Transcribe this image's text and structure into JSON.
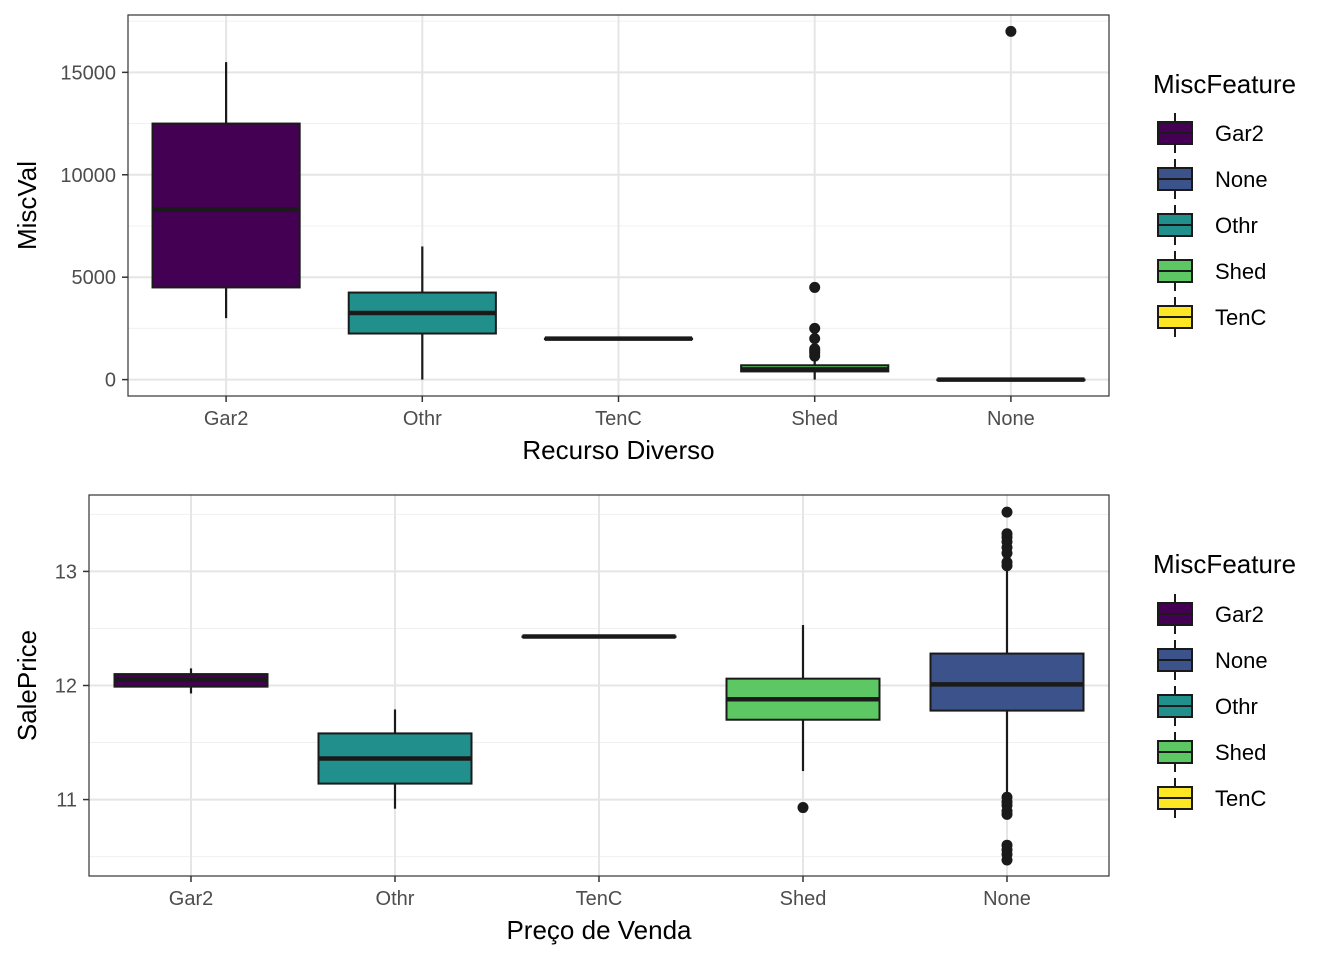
{
  "colors": {
    "Gar2": "#440154",
    "None": "#3B528B",
    "Othr": "#21908C",
    "Shed": "#5DC863",
    "TenC": "#FDE725",
    "outline": "#1a1a1a",
    "grid_major": "#e5e5e5",
    "grid_minor": "#f0f0f0",
    "panel_border": "#333333",
    "axis_text": "#4d4d4d"
  },
  "chart_data": [
    {
      "type": "boxplot",
      "title": "",
      "xlabel": "Recurso Diverso",
      "ylabel": "MiscVal",
      "ylim": [
        -800,
        17800
      ],
      "yticks": [
        0,
        5000,
        10000,
        15000
      ],
      "ytick_labels": [
        "0",
        "5000",
        "10000",
        "15000"
      ],
      "minor_yticks": [
        2500,
        7500,
        12500,
        17500
      ],
      "categories": [
        "Gar2",
        "Othr",
        "TenC",
        "Shed",
        "None"
      ],
      "boxes": [
        {
          "category": "Gar2",
          "fill": "Gar2",
          "lower_whisker": 3000,
          "q1": 4500,
          "median": 8300,
          "q3": 12500,
          "upper_whisker": 15500,
          "outliers": []
        },
        {
          "category": "Othr",
          "fill": "Othr",
          "lower_whisker": 0,
          "q1": 2250,
          "median": 3250,
          "q3": 4250,
          "upper_whisker": 6500,
          "outliers": []
        },
        {
          "category": "TenC",
          "fill": "TenC",
          "lower_whisker": 2000,
          "q1": 2000,
          "median": 2000,
          "q3": 2000,
          "upper_whisker": 2000,
          "outliers": []
        },
        {
          "category": "Shed",
          "fill": "Shed",
          "lower_whisker": 0,
          "q1": 400,
          "median": 500,
          "q3": 700,
          "upper_whisker": 1000,
          "outliers": [
            1150,
            1300,
            1400,
            1500,
            2000,
            2500,
            4500
          ]
        },
        {
          "category": "None",
          "fill": "None",
          "lower_whisker": 0,
          "q1": 0,
          "median": 0,
          "q3": 0,
          "upper_whisker": 0,
          "outliers": [
            17000
          ]
        }
      ],
      "legend": {
        "title": "MiscFeature",
        "position": "right",
        "items": [
          "Gar2",
          "None",
          "Othr",
          "Shed",
          "TenC"
        ]
      },
      "grid": true
    },
    {
      "type": "boxplot",
      "title": "",
      "xlabel": "Preço de Venda",
      "ylabel": "SalePrice",
      "ylim": [
        10.33,
        13.67
      ],
      "yticks": [
        11,
        12,
        13
      ],
      "ytick_labels": [
        "11",
        "12",
        "13"
      ],
      "minor_yticks": [
        10.5,
        11.5,
        12.5,
        13.5
      ],
      "categories": [
        "Gar2",
        "Othr",
        "TenC",
        "Shed",
        "None"
      ],
      "boxes": [
        {
          "category": "Gar2",
          "fill": "Gar2",
          "lower_whisker": 11.93,
          "q1": 11.99,
          "median": 12.05,
          "q3": 12.1,
          "upper_whisker": 12.15,
          "outliers": []
        },
        {
          "category": "Othr",
          "fill": "Othr",
          "lower_whisker": 10.92,
          "q1": 11.14,
          "median": 11.36,
          "q3": 11.58,
          "upper_whisker": 11.79,
          "outliers": []
        },
        {
          "category": "TenC",
          "fill": "TenC",
          "lower_whisker": 12.43,
          "q1": 12.43,
          "median": 12.43,
          "q3": 12.43,
          "upper_whisker": 12.43,
          "outliers": []
        },
        {
          "category": "Shed",
          "fill": "Shed",
          "lower_whisker": 11.25,
          "q1": 11.7,
          "median": 11.88,
          "q3": 12.06,
          "upper_whisker": 12.53,
          "outliers": [
            10.93
          ]
        },
        {
          "category": "None",
          "fill": "None",
          "lower_whisker": 11.04,
          "q1": 11.78,
          "median": 12.01,
          "q3": 12.28,
          "upper_whisker": 13.02,
          "outliers": [
            13.52,
            13.33,
            13.3,
            13.26,
            13.21,
            13.16,
            13.08,
            13.05,
            11.02,
            10.98,
            10.95,
            10.9,
            10.87,
            10.6,
            10.56,
            10.52,
            10.47
          ]
        }
      ],
      "legend": {
        "title": "MiscFeature",
        "position": "right",
        "items": [
          "Gar2",
          "None",
          "Othr",
          "Shed",
          "TenC"
        ]
      },
      "grid": true
    }
  ]
}
